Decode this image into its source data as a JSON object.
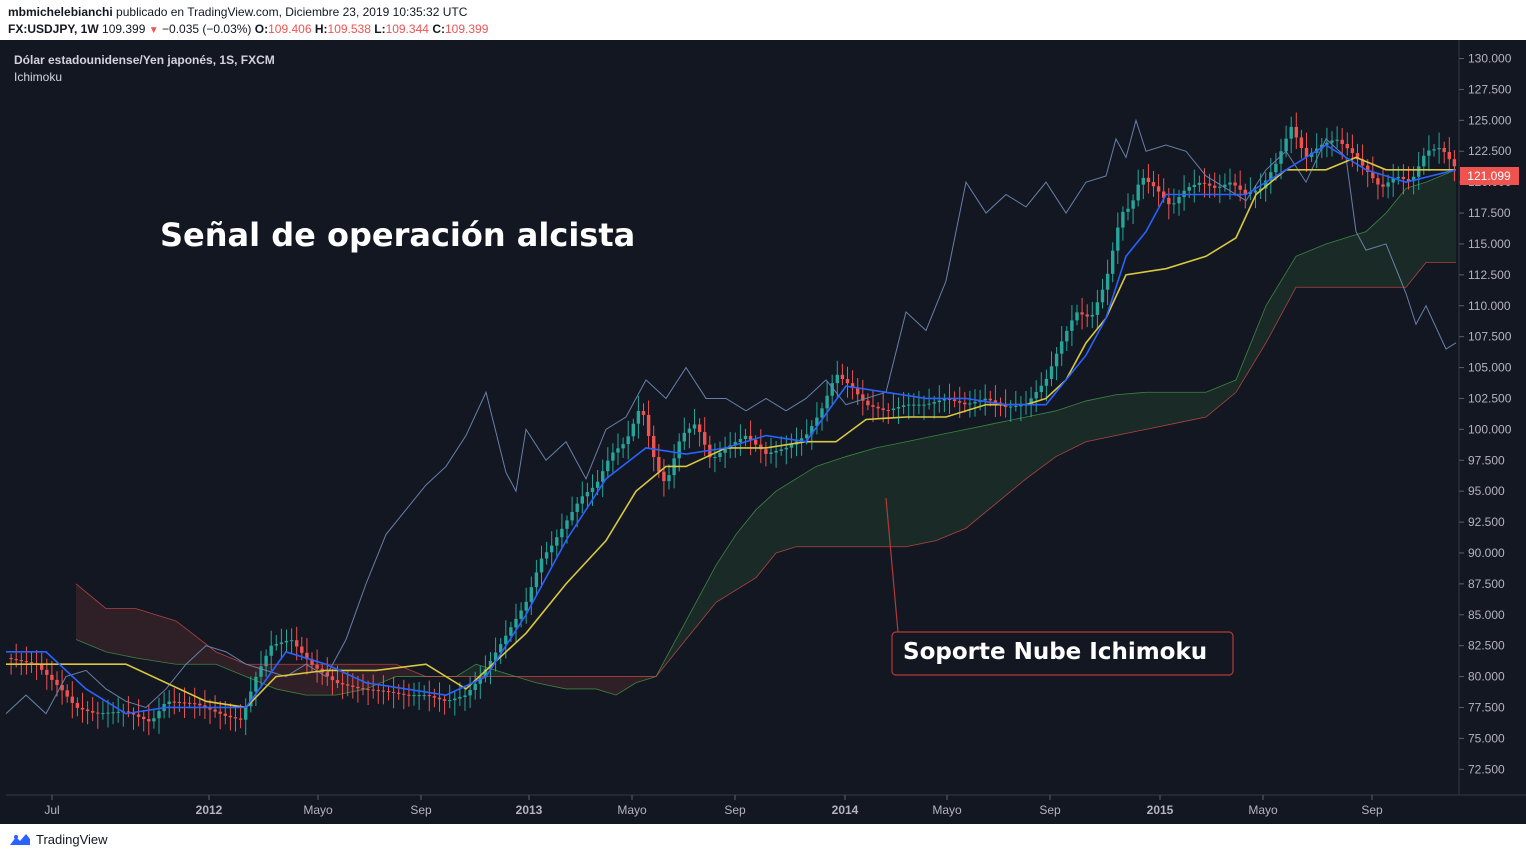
{
  "header": {
    "author": "mbmichelebianchi",
    "published_text": "publicado en TradingView.com, Diciembre 23, 2019 10:35:32 UTC",
    "symbol": "FX:USDJPY, 1W",
    "last": "109.399",
    "arrow": "▼",
    "change": "−0.035 (−0.03%)",
    "o_label": "O:",
    "o_value": "109.406",
    "h_label": "H:",
    "h_value": "109.538",
    "l_label": "L:",
    "l_value": "109.344",
    "c_label": "C:",
    "c_value": "109.399"
  },
  "footer": {
    "brand": "TradingView"
  },
  "colors": {
    "background": "#131722",
    "up": "#26a69a",
    "down": "#ef5350",
    "tenkan": "#2962ff",
    "kijun": "#d9c83f",
    "chikou": "#6b86b0",
    "senkou_a": "#4caf50",
    "senkou_b": "#ef5350",
    "price_label_bg": "#ef5350"
  },
  "chart_data": {
    "type": "candlestick",
    "title": "Dólar estadounidense/Yen japonés, 1S, FXCM",
    "indicator": "Ichimoku",
    "annotation_title": "Señal de operación alcista",
    "callout": "Soporte Nube Ichimoku",
    "last_price_label": "121.099",
    "ylim": [
      70.5,
      131.5
    ],
    "yticks": [
      130.0,
      127.5,
      125.0,
      122.5,
      120.0,
      117.5,
      115.0,
      112.5,
      110.0,
      107.5,
      105.0,
      102.5,
      100.0,
      97.5,
      95.0,
      92.5,
      90.0,
      87.5,
      85.0,
      82.5,
      80.0,
      77.5,
      75.0,
      72.5
    ],
    "ytick_labels": [
      "130.000",
      "127.500",
      "125.000",
      "122.500",
      "120.000",
      "117.500",
      "115.000",
      "112.500",
      "110.000",
      "107.500",
      "105.000",
      "102.500",
      "100.000",
      "97.500",
      "95.000",
      "92.500",
      "90.000",
      "87.500",
      "85.000",
      "82.500",
      "80.000",
      "77.500",
      "75.000",
      "72.500"
    ],
    "xlim": [
      0,
      1452
    ],
    "xticks": [
      {
        "label": "Jul",
        "pos": 46,
        "bold": false
      },
      {
        "label": "2012",
        "pos": 203,
        "bold": true
      },
      {
        "label": "Mayo",
        "pos": 312,
        "bold": false
      },
      {
        "label": "Sep",
        "pos": 415,
        "bold": false
      },
      {
        "label": "2013",
        "pos": 523,
        "bold": true
      },
      {
        "label": "Mayo",
        "pos": 626,
        "bold": false
      },
      {
        "label": "Sep",
        "pos": 729,
        "bold": false
      },
      {
        "label": "2014",
        "pos": 839,
        "bold": true
      },
      {
        "label": "Mayo",
        "pos": 941,
        "bold": false
      },
      {
        "label": "Sep",
        "pos": 1044,
        "bold": false
      },
      {
        "label": "2015",
        "pos": 1154,
        "bold": true
      },
      {
        "label": "Mayo",
        "pos": 1257,
        "bold": false
      },
      {
        "label": "Sep",
        "pos": 1366,
        "bold": false
      }
    ],
    "close_series": {
      "x": [
        0,
        30,
        55,
        70,
        90,
        120,
        145,
        160,
        190,
        220,
        235,
        250,
        265,
        285,
        305,
        330,
        355,
        380,
        400,
        420,
        440,
        460,
        475,
        490,
        505,
        520,
        535,
        545,
        560,
        575,
        590,
        605,
        620,
        635,
        650,
        660,
        675,
        690,
        705,
        720,
        740,
        760,
        780,
        800,
        815,
        830,
        845,
        860,
        880,
        900,
        920,
        940,
        960,
        980,
        1000,
        1020,
        1040,
        1055,
        1070,
        1085,
        1100,
        1115,
        1125,
        1135,
        1150,
        1165,
        1180,
        1195,
        1210,
        1225,
        1240,
        1255,
        1270,
        1285,
        1300,
        1315,
        1330,
        1345,
        1360,
        1375,
        1390,
        1405,
        1420,
        1435,
        1450
      ],
      "y": [
        81.5,
        81.0,
        79.0,
        77.5,
        77.0,
        77.2,
        76.3,
        78.0,
        77.8,
        76.8,
        76.5,
        80.0,
        82.5,
        83.0,
        81.0,
        79.5,
        79.0,
        78.8,
        78.5,
        78.5,
        78.0,
        78.5,
        80.0,
        82.0,
        84.0,
        86.0,
        89.5,
        90.5,
        92.5,
        94.5,
        95.5,
        98.0,
        99.0,
        102.0,
        97.0,
        95.5,
        99.5,
        100.5,
        97.5,
        98.5,
        99.5,
        98.0,
        98.5,
        99.5,
        101.5,
        104.5,
        103.5,
        102.0,
        101.5,
        102.0,
        102.0,
        102.5,
        102.0,
        102.5,
        101.8,
        102.0,
        104.0,
        107.0,
        109.5,
        109.0,
        112.0,
        117.5,
        118.0,
        120.5,
        119.5,
        118.0,
        119.5,
        120.0,
        119.5,
        120.0,
        119.0,
        119.5,
        121.5,
        124.5,
        122.0,
        123.0,
        123.5,
        122.5,
        121.0,
        119.5,
        120.5,
        120.0,
        122.5,
        122.8,
        121.1
      ]
    },
    "series": [
      {
        "name": "Tenkan",
        "x": [
          0,
          40,
          80,
          120,
          160,
          200,
          240,
          280,
          320,
          360,
          400,
          440,
          480,
          520,
          560,
          600,
          640,
          680,
          720,
          760,
          800,
          840,
          880,
          920,
          960,
          1000,
          1040,
          1080,
          1100,
          1120,
          1140,
          1160,
          1200,
          1240,
          1280,
          1320,
          1360,
          1400,
          1450
        ],
        "y": [
          82,
          82,
          79,
          77,
          77.5,
          77.5,
          77.5,
          82,
          81,
          79.5,
          79,
          78.5,
          80,
          85,
          91,
          96,
          98.5,
          98,
          98.5,
          99.5,
          99,
          103.5,
          103,
          102.5,
          102.5,
          102,
          102,
          106,
          109,
          114,
          116,
          119,
          119,
          119,
          121,
          123,
          121,
          120,
          121
        ]
      },
      {
        "name": "Kijun",
        "x": [
          0,
          80,
          120,
          200,
          240,
          270,
          320,
          370,
          420,
          460,
          480,
          520,
          560,
          600,
          630,
          660,
          680,
          720,
          760,
          800,
          830,
          860,
          900,
          940,
          980,
          1020,
          1040,
          1060,
          1080,
          1100,
          1120,
          1160,
          1200,
          1230,
          1250,
          1280,
          1320,
          1350,
          1380,
          1420,
          1450
        ],
        "y": [
          81,
          81,
          81,
          78,
          77.5,
          80,
          80.5,
          80.5,
          81,
          79,
          80.5,
          83.5,
          87.5,
          91,
          95,
          97,
          97,
          98.5,
          98.5,
          99,
          99,
          100.8,
          101,
          101,
          102,
          102,
          102.5,
          104,
          107,
          109,
          112.5,
          113,
          114,
          115.5,
          119,
          121,
          121,
          122,
          121,
          121,
          121
        ]
      },
      {
        "name": "Chikou",
        "x": [
          0,
          20,
          40,
          60,
          80,
          100,
          120,
          140,
          160,
          180,
          200,
          220,
          240,
          260,
          280,
          300,
          320,
          340,
          360,
          380,
          400,
          420,
          440,
          460,
          480,
          500,
          510,
          520,
          540,
          560,
          580,
          600,
          620,
          640,
          660,
          680,
          700,
          720,
          740,
          760,
          780,
          800,
          820,
          840,
          860,
          880,
          900,
          920,
          940,
          960,
          980,
          1000,
          1020,
          1040,
          1060,
          1080,
          1100,
          1110,
          1120,
          1130,
          1140,
          1160,
          1180,
          1200,
          1220,
          1240,
          1260,
          1280,
          1300,
          1320,
          1340,
          1350,
          1360,
          1380,
          1400,
          1410,
          1420,
          1440,
          1450
        ],
        "y": [
          77,
          78.5,
          77,
          80,
          80.5,
          79,
          78,
          77.5,
          79,
          81,
          82.5,
          82,
          81,
          80.5,
          80,
          81,
          80,
          83,
          87.5,
          91.5,
          93.5,
          95.5,
          97,
          99.5,
          103,
          96.5,
          95,
          100,
          97.5,
          99,
          96,
          100,
          101,
          104,
          102.5,
          105,
          102.5,
          102.5,
          101.5,
          102.5,
          101.5,
          102.5,
          104,
          102,
          102.5,
          103,
          109.5,
          108,
          112,
          120,
          117.5,
          119,
          118,
          120,
          117.5,
          120,
          120.5,
          123.5,
          122,
          125,
          122.5,
          123,
          122.5,
          120.5,
          119.5,
          118.5,
          121,
          122.5,
          120,
          123.5,
          122,
          116,
          114.5,
          115,
          111,
          108.5,
          110,
          106.5,
          107
        ]
      },
      {
        "name": "Senkou A",
        "x": [
          70,
          100,
          130,
          170,
          210,
          240,
          270,
          300,
          330,
          360,
          390,
          420,
          450,
          470,
          490,
          510,
          530,
          560,
          590,
          610,
          630,
          650,
          670,
          690,
          710,
          730,
          750,
          770,
          790,
          810,
          840,
          870,
          900,
          930,
          960,
          990,
          1020,
          1050,
          1080,
          1110,
          1140,
          1170,
          1200,
          1230,
          1260,
          1290,
          1320,
          1340,
          1360,
          1380,
          1400,
          1420,
          1450
        ],
        "y": [
          83,
          82,
          81.5,
          81,
          81,
          80,
          79,
          78.5,
          78.5,
          79,
          80,
          80,
          80,
          81,
          80.5,
          80,
          79.5,
          79,
          79,
          78.5,
          79.5,
          80,
          83,
          86,
          89,
          91.5,
          93.5,
          95,
          96,
          97,
          97.8,
          98.5,
          99,
          99.5,
          100,
          100.5,
          101,
          101.5,
          102.3,
          102.8,
          103,
          103,
          103,
          104,
          110,
          114,
          115,
          115.5,
          116,
          117.5,
          119.5,
          120,
          121
        ]
      },
      {
        "name": "Senkou B",
        "x": [
          70,
          100,
          130,
          170,
          210,
          240,
          270,
          300,
          330,
          360,
          390,
          420,
          450,
          470,
          490,
          510,
          530,
          560,
          590,
          610,
          630,
          650,
          670,
          690,
          710,
          730,
          750,
          770,
          790,
          810,
          840,
          870,
          900,
          930,
          960,
          990,
          1020,
          1050,
          1080,
          1110,
          1140,
          1170,
          1200,
          1230,
          1260,
          1290,
          1320,
          1340,
          1360,
          1380,
          1400,
          1420,
          1450
        ],
        "y": [
          87.5,
          85.5,
          85.5,
          84.5,
          82,
          81,
          81,
          81,
          81,
          81,
          81,
          80,
          80,
          80,
          80,
          80,
          80,
          80,
          80,
          80,
          80,
          80,
          82,
          84,
          86,
          87,
          88,
          90,
          90.5,
          90.5,
          90.5,
          90.5,
          90.5,
          91,
          92,
          94,
          96,
          97.8,
          99,
          99.5,
          100,
          100.5,
          101,
          103,
          107,
          111.5,
          111.5,
          111.5,
          111.5,
          111.5,
          111.5,
          113.5,
          113.5
        ]
      }
    ]
  }
}
